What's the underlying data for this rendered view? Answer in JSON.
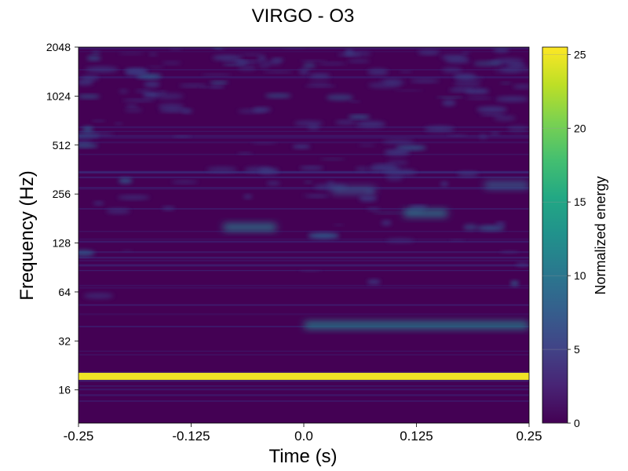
{
  "chart_data": {
    "type": "heatmap",
    "title": "VIRGO - O3",
    "xlabel": "Time (s)",
    "ylabel": "Frequency (Hz)",
    "xlim": [
      -0.25,
      0.25
    ],
    "ylim": [
      10,
      2048
    ],
    "yscale": "log2",
    "x_ticks": [
      -0.25,
      -0.125,
      0.0,
      0.125,
      0.25
    ],
    "x_tick_labels": [
      "-0.25",
      "-0.125",
      "0.0",
      "0.125",
      "0.25"
    ],
    "y_ticks": [
      16,
      32,
      64,
      128,
      256,
      512,
      1024,
      2048
    ],
    "y_tick_labels": [
      "16",
      "32",
      "64",
      "128",
      "256",
      "512",
      "1024",
      "2048"
    ],
    "grid": false,
    "colormap": "viridis",
    "colorbar": {
      "label": "Normalized energy",
      "range": [
        0,
        25.5
      ],
      "ticks": [
        0,
        5,
        10,
        15,
        20,
        25
      ],
      "tick_labels": [
        "0",
        "5",
        "10",
        "15",
        "20",
        "25"
      ]
    },
    "features": [
      {
        "description_freq_hz": 19.5,
        "t_start": -0.25,
        "t_end": 0.25,
        "energy": 25
      },
      {
        "description_freq_hz": 40,
        "t_start": 0.0,
        "t_end": 0.25,
        "energy": 12
      },
      {
        "description_freq_hz": 195,
        "t_start": 0.11,
        "t_end": 0.16,
        "energy": 11
      },
      {
        "description_freq_hz": 160,
        "t_start": -0.09,
        "t_end": -0.03,
        "energy": 11
      },
      {
        "description_freq_hz": 290,
        "t_start": 0.2,
        "t_end": 0.25,
        "energy": 8
      },
      {
        "description_freq_hz": 270,
        "t_start": 0.03,
        "t_end": 0.08,
        "energy": 7
      }
    ]
  }
}
